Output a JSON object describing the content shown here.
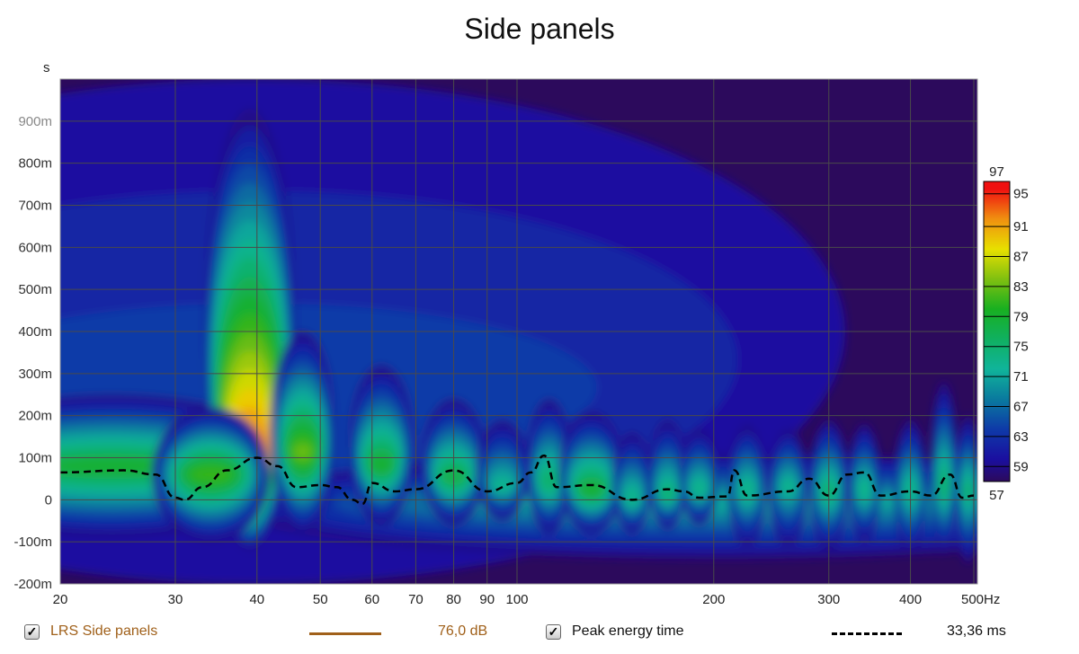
{
  "chart_data": {
    "type": "heatmap",
    "title": "Side panels",
    "ylabel": "s",
    "xlabel": "Hz",
    "xscale": "log",
    "xlim": [
      20,
      500
    ],
    "ylim_ms": [
      -200,
      1000
    ],
    "x_ticks": [
      {
        "v": 20,
        "label": "20"
      },
      {
        "v": 30,
        "label": "30"
      },
      {
        "v": 40,
        "label": "40"
      },
      {
        "v": 50,
        "label": "50"
      },
      {
        "v": 60,
        "label": "60"
      },
      {
        "v": 70,
        "label": "70"
      },
      {
        "v": 80,
        "label": "80"
      },
      {
        "v": 90,
        "label": "90"
      },
      {
        "v": 100,
        "label": "100"
      },
      {
        "v": 200,
        "label": "200"
      },
      {
        "v": 300,
        "label": "300"
      },
      {
        "v": 400,
        "label": "400"
      },
      {
        "v": 500,
        "label": "500Hz"
      }
    ],
    "y_ticks": [
      {
        "v": 900,
        "label": "900m"
      },
      {
        "v": 800,
        "label": "800m"
      },
      {
        "v": 700,
        "label": "700m"
      },
      {
        "v": 600,
        "label": "600m"
      },
      {
        "v": 500,
        "label": "500m"
      },
      {
        "v": 400,
        "label": "400m"
      },
      {
        "v": 300,
        "label": "300m"
      },
      {
        "v": 200,
        "label": "200m"
      },
      {
        "v": 100,
        "label": "100m"
      },
      {
        "v": 0,
        "label": "0"
      },
      {
        "v": -100,
        "label": "-100m"
      },
      {
        "v": -200,
        "label": "-200m"
      }
    ],
    "colorbar": {
      "min": 57,
      "max": 97,
      "min_label": "57",
      "max_label": "97",
      "ticks": [
        {
          "v": 95,
          "label": "95"
        },
        {
          "v": 91,
          "label": "91"
        },
        {
          "v": 87,
          "label": "87"
        },
        {
          "v": 83,
          "label": "83"
        },
        {
          "v": 79,
          "label": "79"
        },
        {
          "v": 75,
          "label": "75"
        },
        {
          "v": 71,
          "label": "71"
        },
        {
          "v": 67,
          "label": "67"
        },
        {
          "v": 63,
          "label": "63"
        },
        {
          "v": 59,
          "label": "59"
        }
      ],
      "colors": [
        [
          57,
          "#2c0a5c"
        ],
        [
          60,
          "#1a0fa0"
        ],
        [
          64,
          "#0e3aa8"
        ],
        [
          68,
          "#0a7a9e"
        ],
        [
          72,
          "#10b49a"
        ],
        [
          76,
          "#10b060"
        ],
        [
          80,
          "#18b020"
        ],
        [
          84,
          "#80c010"
        ],
        [
          88,
          "#e8e000"
        ],
        [
          92,
          "#f09010"
        ],
        [
          96,
          "#f01010"
        ]
      ]
    },
    "energy_peaks": [
      {
        "hz": 40,
        "core_ms": 200,
        "top_ms": 1000,
        "bottom_ms": -200,
        "w": 0.9,
        "db": 64
      },
      {
        "hz": 24,
        "core_ms": 80,
        "top_ms": 250,
        "bottom_ms": -90,
        "w": 0.3,
        "db": 79
      },
      {
        "hz": 200,
        "core_ms": 0,
        "top_ms": 110,
        "bottom_ms": -140,
        "w": 0.75,
        "db": 72
      },
      {
        "hz": 39,
        "core_ms": 65,
        "top_ms": 930,
        "bottom_ms": -120,
        "w": 0.07,
        "db": 96
      },
      {
        "hz": 34,
        "core_ms": 60,
        "top_ms": 220,
        "bottom_ms": -100,
        "w": 0.09,
        "db": 82
      },
      {
        "hz": 47,
        "core_ms": 110,
        "top_ms": 400,
        "bottom_ms": -80,
        "w": 0.05,
        "db": 83
      },
      {
        "hz": 62,
        "core_ms": 80,
        "top_ms": 320,
        "bottom_ms": -60,
        "w": 0.05,
        "db": 79
      },
      {
        "hz": 80,
        "core_ms": 50,
        "top_ms": 240,
        "bottom_ms": -60,
        "w": 0.05,
        "db": 78
      },
      {
        "hz": 95,
        "core_ms": 30,
        "top_ms": 190,
        "bottom_ms": -50,
        "w": 0.04,
        "db": 73
      },
      {
        "hz": 112,
        "core_ms": 40,
        "top_ms": 240,
        "bottom_ms": -80,
        "w": 0.035,
        "db": 76
      },
      {
        "hz": 130,
        "core_ms": 20,
        "top_ms": 210,
        "bottom_ms": -80,
        "w": 0.05,
        "db": 79
      },
      {
        "hz": 150,
        "core_ms": 0,
        "top_ms": 160,
        "bottom_ms": -80,
        "w": 0.03,
        "db": 74
      },
      {
        "hz": 170,
        "core_ms": 10,
        "top_ms": 190,
        "bottom_ms": -70,
        "w": 0.03,
        "db": 75
      },
      {
        "hz": 190,
        "core_ms": 20,
        "top_ms": 170,
        "bottom_ms": -60,
        "w": 0.03,
        "db": 74
      },
      {
        "hz": 225,
        "core_ms": 20,
        "top_ms": 180,
        "bottom_ms": -110,
        "w": 0.03,
        "db": 74
      },
      {
        "hz": 260,
        "core_ms": 30,
        "top_ms": 170,
        "bottom_ms": -110,
        "w": 0.03,
        "db": 73
      },
      {
        "hz": 300,
        "core_ms": 20,
        "top_ms": 190,
        "bottom_ms": -120,
        "w": 0.03,
        "db": 75
      },
      {
        "hz": 340,
        "core_ms": 20,
        "top_ms": 180,
        "bottom_ms": -100,
        "w": 0.025,
        "db": 74
      },
      {
        "hz": 400,
        "core_ms": 20,
        "top_ms": 190,
        "bottom_ms": -130,
        "w": 0.025,
        "db": 74
      },
      {
        "hz": 450,
        "core_ms": 30,
        "top_ms": 280,
        "bottom_ms": -130,
        "w": 0.02,
        "db": 76
      },
      {
        "hz": 490,
        "core_ms": 20,
        "top_ms": 200,
        "bottom_ms": -150,
        "w": 0.02,
        "db": 75
      }
    ],
    "peak_energy_time": {
      "hz": [
        20,
        25,
        28,
        30,
        31,
        33,
        36,
        40,
        43,
        46,
        50,
        53,
        56,
        58,
        60,
        65,
        70,
        80,
        90,
        100,
        105,
        110,
        115,
        130,
        150,
        170,
        180,
        190,
        210,
        215,
        225,
        260,
        280,
        300,
        320,
        340,
        360,
        400,
        430,
        460,
        480,
        500
      ],
      "ms": [
        65,
        70,
        60,
        5,
        0,
        30,
        70,
        100,
        80,
        30,
        35,
        30,
        0,
        -10,
        40,
        20,
        25,
        70,
        20,
        40,
        65,
        105,
        30,
        35,
        0,
        25,
        20,
        5,
        8,
        70,
        10,
        20,
        50,
        10,
        60,
        65,
        10,
        20,
        10,
        60,
        5,
        10
      ]
    }
  },
  "legend": {
    "series1_label": "LRS Side panels",
    "series1_value": "76,0 dB",
    "series1_color": "#a0601a",
    "series2_label": "Peak energy time",
    "series2_value": "33,36 ms",
    "checkbox_mark": "✓"
  }
}
